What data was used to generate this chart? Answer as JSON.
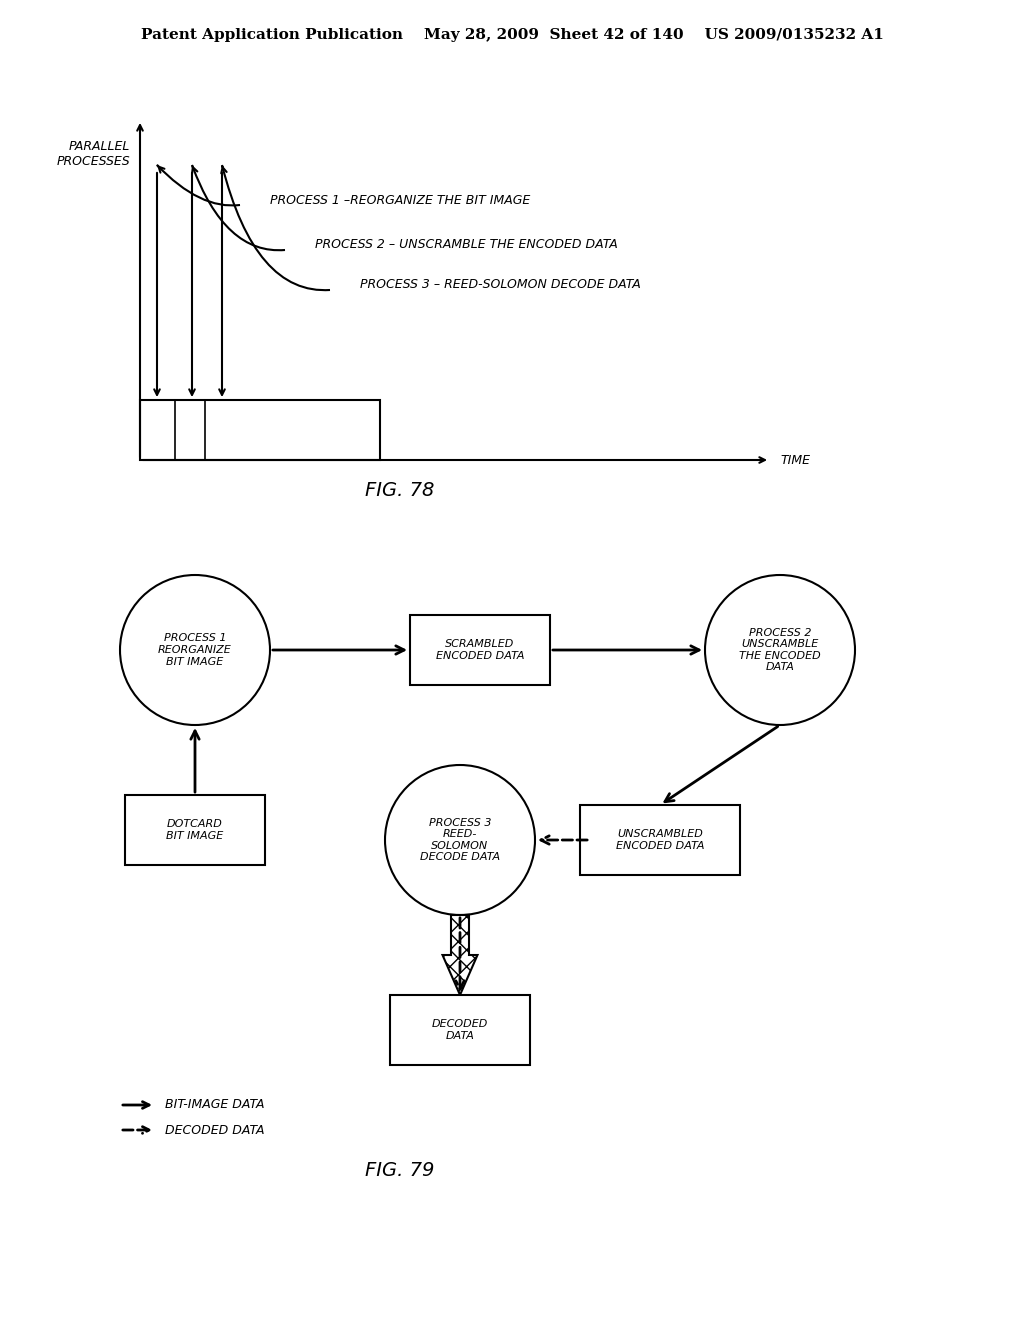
{
  "bg_color": "#ffffff",
  "header_text": "Patent Application Publication    May 28, 2009  Sheet 42 of 140    US 2009/0135232 A1",
  "fig78_label": "FIG. 78",
  "fig79_label": "FIG. 79",
  "fig78": {
    "ylabel": "PARALLEL\nPROCESSES",
    "xlabel": "TIME",
    "process1_label": "PROCESS 1 –REORGANIZE THE BIT IMAGE",
    "process2_label": "PROCESS 2 – UNSCRAMBLE THE ENCODED DATA",
    "process3_label": "PROCESS 3 – REED-SOLOMON DECODE DATA"
  },
  "fig79": {
    "process1_text": "PROCESS 1\nREORGANIZE\nBIT IMAGE",
    "process2_text": "PROCESS 2\nUNSCRAMBLE\nTHE ENCODED\nDATA",
    "process3_text": "PROCESS 3\nREED-\nSOLOMON\nDECODE DATA",
    "scrambled_text": "SCRAMBLED\nENCODED DATA",
    "unscrambled_text": "UNSCRAMBLED\nENCODED DATA",
    "dotcard_text": "DOTCARD\nBIT IMAGE",
    "decoded_text": "DECODED\nDATA",
    "legend1": "→ BIT-IMAGE DATA",
    "legend2": "––→ DECODED DATA"
  }
}
